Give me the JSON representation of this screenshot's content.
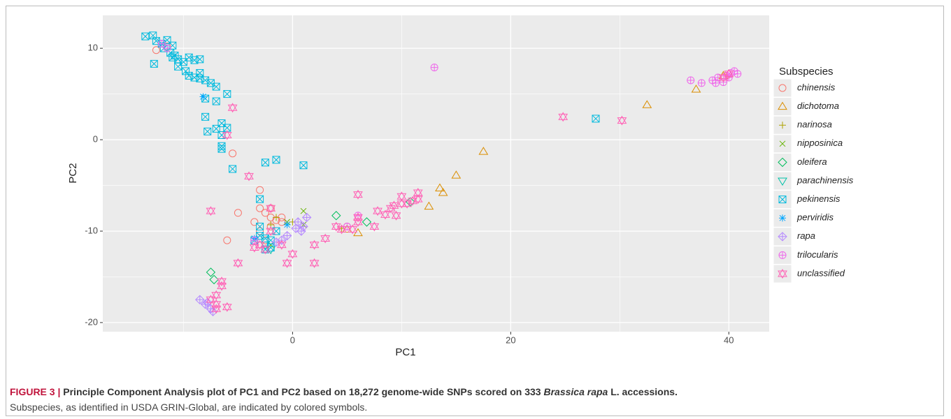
{
  "chart_data": {
    "type": "scatter",
    "xlabel": "PC1",
    "ylabel": "PC2",
    "xlim": [
      -17.4,
      43.7
    ],
    "ylim": [
      -21.0,
      13.6
    ],
    "xticks": [
      0,
      20,
      40
    ],
    "yticks": [
      -20,
      -10,
      0,
      10
    ],
    "x_minor_grid": [
      -10,
      10,
      30
    ],
    "y_minor_grid": [
      -15,
      -5,
      5
    ],
    "grid": true,
    "legend_title": "Subspecies",
    "legend_position": "right",
    "series": [
      {
        "name": "chinensis",
        "color": "#F8766D",
        "shape": "circle",
        "x": [
          -12.5,
          -11.5,
          -5.5,
          -6,
          -3,
          -3,
          -2.5,
          -2,
          -1.5,
          -3.5,
          -2,
          -1,
          -3,
          -2.5,
          -5,
          -1,
          -2,
          5
        ],
        "y": [
          9.8,
          10.2,
          -1.5,
          -11,
          -5.5,
          -7.5,
          -8,
          -8.5,
          -8.8,
          -9,
          -9.5,
          -9,
          -10,
          -11,
          -8,
          -8.5,
          -7.5,
          -9.5
        ]
      },
      {
        "name": "dichotoma",
        "color": "#DB8E00",
        "shape": "triangle",
        "x": [
          37,
          32.5,
          17.5,
          15,
          13.5,
          13.8,
          12.5,
          6,
          5,
          39.5,
          40
        ],
        "y": [
          5.5,
          3.8,
          -1.3,
          -3.9,
          -5.3,
          -5.8,
          -7.3,
          -10.2,
          -9.8,
          7,
          7.2
        ]
      },
      {
        "name": "narinosa",
        "color": "#AEA200",
        "shape": "plus",
        "x": [
          -1.5,
          0,
          -2,
          4.5
        ],
        "y": [
          -8.5,
          -9,
          -9.3,
          -9.7
        ]
      },
      {
        "name": "nipposinica",
        "color": "#64B200",
        "shape": "cross",
        "x": [
          1,
          1,
          -0.5,
          -2
        ],
        "y": [
          -7.8,
          -9.3,
          -9,
          -11.5
        ]
      },
      {
        "name": "oleifera",
        "color": "#00BD5C",
        "shape": "diamond",
        "x": [
          -7.5,
          -7.2,
          4,
          6.8,
          10.8
        ],
        "y": [
          -14.5,
          -15.3,
          -8.3,
          -9,
          -6.8
        ]
      },
      {
        "name": "parachinensis",
        "color": "#00C1A7",
        "shape": "triangle-down",
        "x": [
          -2.5,
          -2
        ],
        "y": [
          -11.5,
          -12
        ]
      },
      {
        "name": "pekinensis",
        "color": "#00BADE",
        "shape": "square-cross",
        "x": [
          -13.5,
          -12.8,
          -12.5,
          -12,
          -11.5,
          -11.8,
          -11,
          -11.2,
          -10.8,
          -10.5,
          -10,
          -10.5,
          -9.8,
          -9.5,
          -9,
          -9.5,
          -9,
          -8.5,
          -8.5,
          -8,
          -8.5,
          -7.5,
          -7,
          -12.7,
          -11,
          -8,
          -7,
          -6,
          -8,
          -7.8,
          -7,
          -6.5,
          -6,
          -6.5,
          -6.5,
          -6.5,
          -5.5,
          -3,
          -2.5,
          -1.5,
          1,
          27.8,
          -3,
          -3,
          -2.5,
          -2,
          -2.5,
          -3.5,
          -1.5,
          -2
        ],
        "y": [
          11.3,
          11.4,
          10.8,
          10.5,
          10.9,
          10,
          10.3,
          9.5,
          9.2,
          8.8,
          8.5,
          8,
          7.5,
          7,
          6.8,
          9,
          8.7,
          8.8,
          6.7,
          6.5,
          7.3,
          6.2,
          5.8,
          8.3,
          9,
          4.5,
          4.2,
          5,
          2.5,
          0.9,
          1.2,
          1.8,
          1.3,
          0.5,
          -0.7,
          -1,
          -3.2,
          -6.5,
          -2.5,
          -2.2,
          -2.8,
          2.3,
          -9.5,
          -10.5,
          -10.8,
          -11,
          -12,
          -11,
          -10,
          -11.8
        ]
      },
      {
        "name": "perviridis",
        "color": "#00A6FF",
        "shape": "asterisk",
        "x": [
          -8.2,
          -3.5,
          -0.5
        ],
        "y": [
          4.7,
          -10.8,
          -9.3
        ]
      },
      {
        "name": "rapa",
        "color": "#B385FF",
        "shape": "diamond-plus",
        "x": [
          -8.5,
          -8,
          -7.5,
          -7.3,
          -7.8,
          0.5,
          0.8,
          1.3,
          0.3,
          -0.5,
          -1,
          1,
          -1.5
        ],
        "y": [
          -17.5,
          -18,
          -18.5,
          -18.8,
          -17.8,
          -9,
          -10,
          -8.5,
          -9.7,
          -10.5,
          -11,
          -9.5,
          -11.2
        ]
      },
      {
        "name": "trilocularis",
        "color": "#EF67EB",
        "shape": "circle-plus",
        "x": [
          13,
          36.5,
          37.5,
          38.5,
          39,
          39.5,
          39.8,
          40.2,
          40.5,
          40,
          38.8,
          40.8,
          -12,
          -11.5,
          -3.5,
          5,
          6
        ],
        "y": [
          7.9,
          6.5,
          6.2,
          6.5,
          6.8,
          6.3,
          7,
          7.3,
          7.5,
          6.8,
          6.2,
          7.2,
          10.5,
          10,
          -11,
          -9.5,
          -8.3
        ]
      },
      {
        "name": "unclassified",
        "color": "#FF63B6",
        "shape": "hexagram",
        "x": [
          -5.5,
          -6,
          -4,
          -7.5,
          -5,
          -6.5,
          -6.5,
          -7.5,
          -7,
          -7,
          -6,
          -7,
          -3,
          -2.5,
          -3.5,
          -2,
          -2,
          -1,
          -0.5,
          0,
          2,
          2,
          3,
          4,
          4.5,
          5.5,
          6,
          6,
          6,
          7.5,
          7.8,
          8.5,
          9,
          9.3,
          9.5,
          10,
          10,
          10.5,
          11,
          11.5,
          11.5,
          24.8,
          30.2,
          40,
          39.5
        ],
        "y": [
          3.5,
          0.5,
          -4,
          -7.8,
          -13.5,
          -15.5,
          -16,
          -17.5,
          -17,
          -18,
          -18.3,
          -18.5,
          -11.5,
          -12,
          -11.8,
          -10,
          -7.5,
          -11.5,
          -13.5,
          -12.5,
          -11.5,
          -13.5,
          -10.8,
          -9.5,
          -9.8,
          -9.8,
          -8.5,
          -6,
          -9,
          -9.5,
          -7.8,
          -8.2,
          -7.5,
          -7.2,
          -8.3,
          -6.2,
          -7,
          -7,
          -6.7,
          -5.8,
          -6.5,
          2.5,
          2.1,
          7.2,
          6.8
        ]
      }
    ]
  },
  "caption": {
    "label": "FIGURE 3 |",
    "title": [
      "Principle Component Analysis plot of PC1 and PC2 based on 18,272 genome-wide SNPs scored on 333",
      "Brassica rapa",
      "L. accessions."
    ],
    "note": "Subspecies, as identified in USDA GRIN-Global, are indicated by colored symbols."
  }
}
